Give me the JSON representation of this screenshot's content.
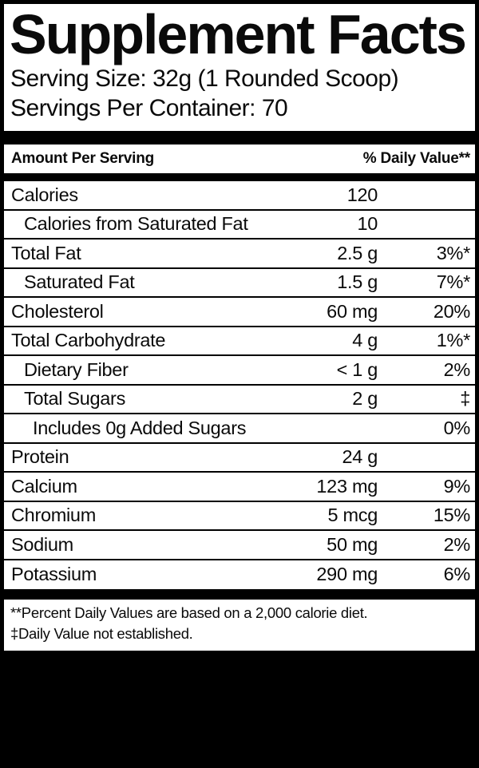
{
  "label": {
    "title": "Supplement Facts",
    "serving_size": "Serving Size: 32g (1 Rounded Scoop)",
    "servings_per_container": "Servings Per Container: 70",
    "header": {
      "amount_per_serving": "Amount Per Serving",
      "daily_value": "% Daily Value**"
    },
    "rows": [
      {
        "name": "Calories",
        "amount": "120",
        "dv": "",
        "indent": 0
      },
      {
        "name": "Calories from Saturated Fat",
        "amount": "10",
        "dv": "",
        "indent": 1
      },
      {
        "name": "Total Fat",
        "amount": "2.5 g",
        "dv": "3%*",
        "indent": 0
      },
      {
        "name": "Saturated Fat",
        "amount": "1.5 g",
        "dv": "7%*",
        "indent": 1
      },
      {
        "name": "Cholesterol",
        "amount": "60 mg",
        "dv": "20%",
        "indent": 0
      },
      {
        "name": "Total Carbohydrate",
        "amount": "4 g",
        "dv": "1%*",
        "indent": 0
      },
      {
        "name": "Dietary Fiber",
        "amount": "< 1 g",
        "dv": "2%",
        "indent": 1
      },
      {
        "name": "Total Sugars",
        "amount": "2 g",
        "dv": "‡",
        "indent": 1
      },
      {
        "name": "Includes 0g Added Sugars",
        "amount": "",
        "dv": "0%",
        "indent": 2
      },
      {
        "name": "Protein",
        "amount": "24 g",
        "dv": "",
        "indent": 0
      },
      {
        "name": "Calcium",
        "amount": "123 mg",
        "dv": "9%",
        "indent": 0
      },
      {
        "name": "Chromium",
        "amount": "5 mcg",
        "dv": "15%",
        "indent": 0
      },
      {
        "name": "Sodium",
        "amount": "50 mg",
        "dv": "2%",
        "indent": 0
      },
      {
        "name": "Potassium",
        "amount": "290 mg",
        "dv": "6%",
        "indent": 0
      }
    ],
    "footnotes": [
      "**Percent Daily Values are based on a 2,000 calorie diet.",
      "‡Daily Value not established."
    ],
    "colors": {
      "background": "#000000",
      "panel": "#ffffff",
      "text": "#000000"
    }
  }
}
